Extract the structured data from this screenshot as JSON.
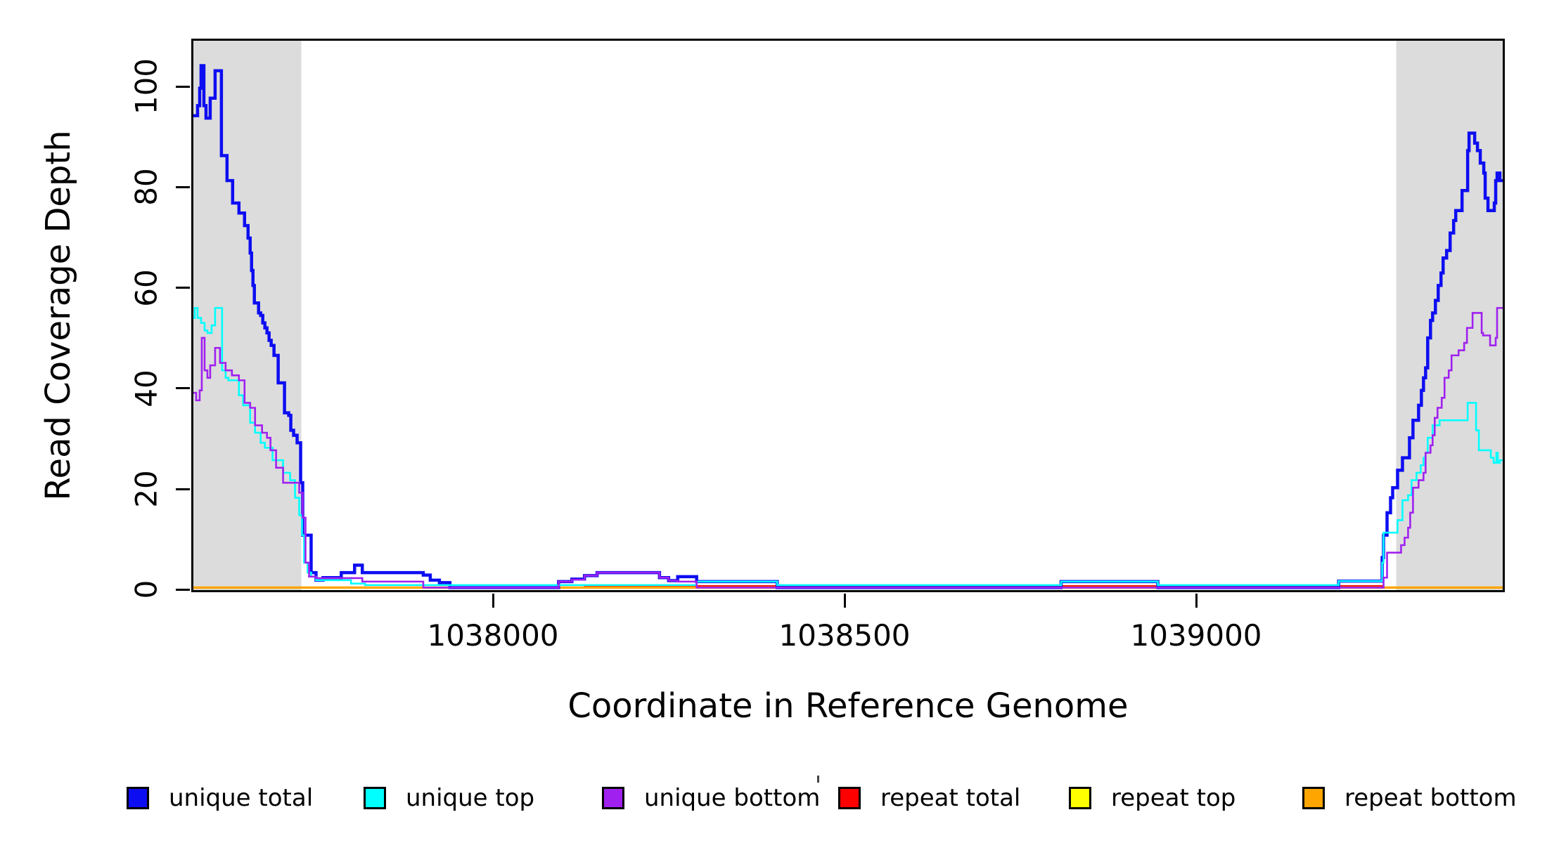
{
  "chart_data": {
    "type": "line",
    "subtype": "step-coverage",
    "title": "",
    "xlabel": "Coordinate in Reference Genome",
    "ylabel": "Read Coverage Depth",
    "xlim": [
      1037571,
      1039439
    ],
    "ylim": [
      -0.5,
      109.5
    ],
    "grid": false,
    "legend_position": "bottom",
    "band_color": "#dcdcdc",
    "highlight_bands": [
      {
        "x1": 1037571,
        "x2": 1037725
      },
      {
        "x1": 1039287,
        "x2": 1039439
      }
    ],
    "x_ticks": [
      {
        "label": "1038000",
        "value": 1038000
      },
      {
        "label": "1038500",
        "value": 1038500
      },
      {
        "label": "1039000",
        "value": 1039000
      }
    ],
    "y_ticks": [
      {
        "label": "0",
        "value": 0
      },
      {
        "label": "20",
        "value": 20
      },
      {
        "label": "40",
        "value": 40
      },
      {
        "label": "60",
        "value": 60
      },
      {
        "label": "80",
        "value": 80
      },
      {
        "label": "100",
        "value": 100
      }
    ],
    "series": [
      {
        "name": "unique total",
        "color": "#0d0df2",
        "width": 4.5,
        "z": 3,
        "points": [
          [
            1037571,
            94.5
          ],
          [
            1037577,
            96.5
          ],
          [
            1037580,
            100
          ],
          [
            1037582,
            104.5
          ],
          [
            1037586,
            96.5
          ],
          [
            1037589,
            94
          ],
          [
            1037595,
            98
          ],
          [
            1037602,
            103.5
          ],
          [
            1037611,
            86.5
          ],
          [
            1037619,
            81.5
          ],
          [
            1037627,
            77
          ],
          [
            1037636,
            75
          ],
          [
            1037644,
            72.5
          ],
          [
            1037649,
            70
          ],
          [
            1037652,
            67
          ],
          [
            1037654,
            63.5
          ],
          [
            1037656,
            60.5
          ],
          [
            1037658,
            57
          ],
          [
            1037664,
            55
          ],
          [
            1037667,
            54.5
          ],
          [
            1037670,
            53
          ],
          [
            1037673,
            52
          ],
          [
            1037676,
            51
          ],
          [
            1037679,
            49.5
          ],
          [
            1037682,
            48.5
          ],
          [
            1037686,
            46.5
          ],
          [
            1037692,
            41
          ],
          [
            1037701,
            35
          ],
          [
            1037707,
            34.5
          ],
          [
            1037710,
            31.5
          ],
          [
            1037714,
            30.5
          ],
          [
            1037719,
            29
          ],
          [
            1037724,
            21
          ],
          [
            1037727,
            10.5
          ],
          [
            1037739,
            3
          ],
          [
            1037746,
            1.5
          ],
          [
            1037756,
            2
          ],
          [
            1037782,
            3
          ],
          [
            1037801,
            4.5
          ],
          [
            1037812,
            3
          ],
          [
            1037899,
            2.5
          ],
          [
            1037909,
            1.5
          ],
          [
            1037922,
            1
          ],
          [
            1037937,
            0
          ],
          [
            1038092,
            1.2
          ],
          [
            1038111,
            1.7
          ],
          [
            1038129,
            2.4
          ],
          [
            1038147,
            3
          ],
          [
            1038236,
            2
          ],
          [
            1038249,
            1.4
          ],
          [
            1038262,
            2.2
          ],
          [
            1038289,
            1.2
          ],
          [
            1038404,
            0
          ],
          [
            1038809,
            1.2
          ],
          [
            1038947,
            0
          ],
          [
            1039205,
            1.3
          ],
          [
            1039267,
            6
          ],
          [
            1039269,
            10.5
          ],
          [
            1039274,
            15
          ],
          [
            1039279,
            18
          ],
          [
            1039282,
            20
          ],
          [
            1039289,
            23.5
          ],
          [
            1039296,
            26
          ],
          [
            1039306,
            30
          ],
          [
            1039311,
            33.5
          ],
          [
            1039319,
            36.5
          ],
          [
            1039323,
            39.5
          ],
          [
            1039326,
            42
          ],
          [
            1039329,
            44
          ],
          [
            1039332,
            50
          ],
          [
            1039336,
            53.5
          ],
          [
            1039339,
            55
          ],
          [
            1039343,
            57.5
          ],
          [
            1039347,
            60.5
          ],
          [
            1039351,
            63
          ],
          [
            1039354,
            66
          ],
          [
            1039359,
            67.5
          ],
          [
            1039364,
            71
          ],
          [
            1039369,
            73.5
          ],
          [
            1039372,
            75.5
          ],
          [
            1039381,
            79.5
          ],
          [
            1039389,
            87.5
          ],
          [
            1039391,
            91
          ],
          [
            1039399,
            89
          ],
          [
            1039403,
            87.5
          ],
          [
            1039407,
            85
          ],
          [
            1039412,
            83
          ],
          [
            1039414,
            78
          ],
          [
            1039418,
            75.5
          ],
          [
            1039427,
            77
          ],
          [
            1039429,
            81.5
          ],
          [
            1039431,
            83
          ],
          [
            1039435,
            81.5
          ],
          [
            1039439,
            81.5
          ]
        ]
      },
      {
        "name": "unique top",
        "color": "#00ffff",
        "width": 2.6,
        "z": 4,
        "points": [
          [
            1037571,
            54
          ],
          [
            1037573,
            56
          ],
          [
            1037577,
            54
          ],
          [
            1037582,
            53
          ],
          [
            1037587,
            51.5
          ],
          [
            1037591,
            51
          ],
          [
            1037597,
            52.5
          ],
          [
            1037602,
            56
          ],
          [
            1037612,
            43.5
          ],
          [
            1037617,
            42
          ],
          [
            1037621,
            41.5
          ],
          [
            1037636,
            38.5
          ],
          [
            1037642,
            36.5
          ],
          [
            1037652,
            33
          ],
          [
            1037659,
            31
          ],
          [
            1037667,
            29
          ],
          [
            1037673,
            28
          ],
          [
            1037684,
            25.5
          ],
          [
            1037699,
            23
          ],
          [
            1037709,
            21.5
          ],
          [
            1037716,
            18
          ],
          [
            1037722,
            14.5
          ],
          [
            1037726,
            10.5
          ],
          [
            1037729,
            5
          ],
          [
            1037734,
            3
          ],
          [
            1037739,
            2.2
          ],
          [
            1037746,
            1.5
          ],
          [
            1037796,
            0.8
          ],
          [
            1037816,
            0.5
          ],
          [
            1038289,
            1.2
          ],
          [
            1038404,
            0.5
          ],
          [
            1038809,
            1.2
          ],
          [
            1038947,
            0.5
          ],
          [
            1039205,
            1.3
          ],
          [
            1039267,
            5
          ],
          [
            1039269,
            11
          ],
          [
            1039289,
            13.5
          ],
          [
            1039296,
            17.5
          ],
          [
            1039304,
            18.5
          ],
          [
            1039309,
            21.5
          ],
          [
            1039316,
            23
          ],
          [
            1039322,
            24.5
          ],
          [
            1039326,
            26
          ],
          [
            1039329,
            27
          ],
          [
            1039332,
            30
          ],
          [
            1039339,
            32.5
          ],
          [
            1039349,
            33.5
          ],
          [
            1039389,
            37
          ],
          [
            1039401,
            31.5
          ],
          [
            1039405,
            27.5
          ],
          [
            1039422,
            26
          ],
          [
            1039426,
            25
          ],
          [
            1039430,
            27
          ],
          [
            1039432,
            25
          ],
          [
            1039435,
            25.5
          ],
          [
            1039439,
            25.5
          ]
        ]
      },
      {
        "name": "unique bottom",
        "color": "#a020f0",
        "width": 2.6,
        "z": 5,
        "points": [
          [
            1037571,
            39
          ],
          [
            1037575,
            37.5
          ],
          [
            1037580,
            39.5
          ],
          [
            1037583,
            50
          ],
          [
            1037587,
            43.5
          ],
          [
            1037591,
            42
          ],
          [
            1037595,
            44.5
          ],
          [
            1037602,
            48
          ],
          [
            1037609,
            45
          ],
          [
            1037617,
            43.5
          ],
          [
            1037626,
            42.5
          ],
          [
            1037636,
            41.5
          ],
          [
            1037644,
            37
          ],
          [
            1037652,
            36
          ],
          [
            1037659,
            32.5
          ],
          [
            1037669,
            31
          ],
          [
            1037676,
            30
          ],
          [
            1037681,
            27.5
          ],
          [
            1037689,
            24
          ],
          [
            1037699,
            21
          ],
          [
            1037722,
            19
          ],
          [
            1037727,
            14
          ],
          [
            1037731,
            5
          ],
          [
            1037736,
            2.2
          ],
          [
            1037746,
            1.9
          ],
          [
            1037812,
            1.2
          ],
          [
            1037899,
            0
          ],
          [
            1038092,
            1.2
          ],
          [
            1038111,
            1.6
          ],
          [
            1038129,
            2.4
          ],
          [
            1038147,
            3
          ],
          [
            1038236,
            2
          ],
          [
            1038249,
            1.4
          ],
          [
            1038262,
            1.2
          ],
          [
            1038289,
            0
          ],
          [
            1039269,
            2
          ],
          [
            1039274,
            7
          ],
          [
            1039294,
            8.5
          ],
          [
            1039299,
            10
          ],
          [
            1039304,
            12
          ],
          [
            1039307,
            15
          ],
          [
            1039311,
            20
          ],
          [
            1039319,
            21.5
          ],
          [
            1039326,
            23
          ],
          [
            1039329,
            27
          ],
          [
            1039336,
            28.5
          ],
          [
            1039339,
            30.5
          ],
          [
            1039342,
            34
          ],
          [
            1039346,
            36
          ],
          [
            1039352,
            38
          ],
          [
            1039356,
            42
          ],
          [
            1039362,
            43.5
          ],
          [
            1039366,
            46.5
          ],
          [
            1039376,
            47.5
          ],
          [
            1039384,
            49
          ],
          [
            1039388,
            52
          ],
          [
            1039396,
            55
          ],
          [
            1039409,
            51
          ],
          [
            1039411,
            50.5
          ],
          [
            1039421,
            48.5
          ],
          [
            1039429,
            50
          ],
          [
            1039431,
            56
          ],
          [
            1039439,
            56
          ]
        ]
      },
      {
        "name": "repeat total",
        "color": "#ff0000",
        "width": 2,
        "z": 1,
        "points": [
          [
            1037571,
            0
          ],
          [
            1038129,
            0.35
          ],
          [
            1039267,
            0
          ],
          [
            1039439,
            0
          ]
        ]
      },
      {
        "name": "repeat top",
        "color": "#ffff00",
        "width": 2,
        "z": 0,
        "points": [
          [
            1037571,
            0
          ],
          [
            1039439,
            0
          ]
        ]
      },
      {
        "name": "repeat bottom",
        "color": "#ffa500",
        "width": 3.5,
        "z": 2,
        "points": [
          [
            1037571,
            0
          ],
          [
            1039439,
            0
          ]
        ]
      }
    ]
  }
}
